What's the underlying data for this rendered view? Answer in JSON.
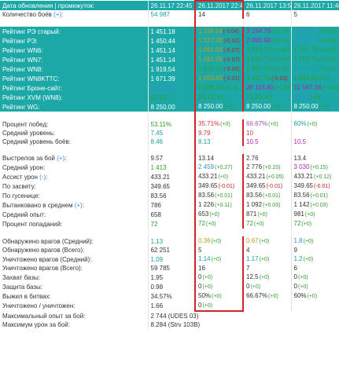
{
  "colors": {
    "green": "#2e9e2e",
    "dark-red": "#c02020",
    "red": "#e0303a",
    "olive": "#8a9a1a",
    "yellow": "#c89a10",
    "blue": "#3d8ad8",
    "magenta": "#b020b0",
    "purple": "#a050c0",
    "teal": "#1aa0a0",
    "default": "#333333",
    "header": "#1da8a8",
    "highlight-border": "#d2232a"
  },
  "rows": [
    {
      "type": "header",
      "label": "Дата обновления | промежуток:",
      "cells": [
        {
          "v": "26.11.17 22:45"
        },
        {
          "v": "26.11.2017 22:45"
        },
        {
          "v": "26.11.2017 13:53"
        },
        {
          "v": "26.11.2017 11:46"
        }
      ]
    },
    {
      "type": "white",
      "label": "Количество боёв (+):",
      "cells": [
        {
          "v": "54 987",
          "c": "teal"
        },
        {
          "v": "14"
        },
        {
          "v": "6"
        },
        {
          "v": "5"
        }
      ]
    },
    {
      "type": "spacer"
    },
    {
      "type": "teal",
      "label": "Рейтинг РЭ старый:",
      "cells": [
        {
          "v": "1 451.18"
        },
        {
          "v": "1 116.14",
          "d": "(-0.08)",
          "c": "yellow",
          "dc": "dark-red"
        },
        {
          "v": "3 154.76",
          "d": "(+0.19)",
          "c": "magenta",
          "dc": "green"
        },
        {
          "v": "1 600.50",
          "d": "(+0.02)",
          "c": "blue",
          "dc": "green"
        }
      ]
    },
    {
      "type": "teal",
      "label": "Рейтинг РЭ:",
      "cells": [
        {
          "v": "1 450.44"
        },
        {
          "v": "1 227.28",
          "d": "(-0.02)",
          "c": "yellow",
          "dc": "dark-red"
        },
        {
          "v": "2 096.98",
          "d": "(+0.14)",
          "c": "magenta",
          "dc": "green"
        },
        {
          "v": "1 655.75",
          "d": "(+0.03)",
          "c": "blue",
          "dc": "green"
        }
      ]
    },
    {
      "type": "teal",
      "label": "Рейтинг WN6:",
      "cells": [
        {
          "v": "1 451.14"
        },
        {
          "v": "1 061.05",
          "d": "(-0.07)",
          "c": "yellow",
          "dc": "dark-red"
        },
        {
          "v": "1 533.73",
          "d": "(+0.04)",
          "c": "green",
          "dc": "green"
        },
        {
          "v": "1 707.75",
          "d": "(+0.05)",
          "c": "green",
          "dc": "green"
        }
      ]
    },
    {
      "type": "teal",
      "label": "Рейтинг WN7:",
      "cells": [
        {
          "v": "1 451.14"
        },
        {
          "v": "1 061.05",
          "d": "(-0.07)",
          "c": "yellow",
          "dc": "dark-red"
        },
        {
          "v": "1 533.73",
          "d": "(+0.04)",
          "c": "green",
          "dc": "green"
        },
        {
          "v": "1 707.75",
          "d": "(+0.05)",
          "c": "green",
          "dc": "green"
        }
      ]
    },
    {
      "type": "teal",
      "label": "Рейтинг WN8:",
      "cells": [
        {
          "v": "1 919.54"
        },
        {
          "v": "1 515.53",
          "d": "(-0.05)",
          "c": "green",
          "dc": "dark-red"
        },
        {
          "v": "2 051.73",
          "d": "(+0.05)",
          "c": "green",
          "dc": "green"
        },
        {
          "v": "2 363.30",
          "d": "(+0.07)",
          "c": "teal",
          "dc": "green"
        }
      ]
    },
    {
      "type": "teal",
      "label": "Рейтинг WN8KTTC:",
      "cells": [
        {
          "v": "1 671.39"
        },
        {
          "v": "1 059.65",
          "d": "(-0.21)",
          "c": "yellow",
          "dc": "dark-red"
        },
        {
          "v": "1 487.41",
          "d": "(-0.03)",
          "c": "green",
          "dc": "dark-red"
        },
        {
          "v": "1 632.05",
          "d": "(+0)",
          "c": "green",
          "dc": "green"
        }
      ]
    },
    {
      "type": "teal",
      "label": "Рейтинг Броне-сайт:",
      "cells": [
        {
          "v": "6 995.25",
          "c": "blue"
        },
        {
          "v": "5 869.33",
          "d": "(+0.5)",
          "c": "green",
          "dc": "green"
        },
        {
          "v": "28 113.80",
          "d": "(+1.58)",
          "c": "magenta",
          "dc": "green"
        },
        {
          "v": "11 587.26",
          "d": "(+0.62)",
          "c": "magenta",
          "dc": "green"
        }
      ]
    },
    {
      "type": "teal",
      "label": "Рейтинг XVM (WN8):",
      "cells": [
        {
          "v": "67.61",
          "c": "green"
        },
        {
          "v": "54.12",
          "d": "(+0)",
          "c": "green",
          "dc": "green"
        },
        {
          "v": "71.80",
          "d": "(+0)",
          "c": "green",
          "dc": "green"
        },
        {
          "v": "80.88",
          "d": "(+0)",
          "c": "blue",
          "dc": "green"
        }
      ]
    },
    {
      "type": "teal",
      "label": "Рейтинг WG:",
      "cells": [
        {
          "v": "8 250.00"
        },
        {
          "v": "8 250.00",
          "d": "(+0)",
          "dc": "green"
        },
        {
          "v": "8 250.00",
          "d": "(+0)",
          "dc": "green"
        },
        {
          "v": "8 250.00",
          "d": "(+1)",
          "dc": "green"
        }
      ]
    },
    {
      "type": "spacer"
    },
    {
      "type": "white",
      "label": "Процент побед:",
      "cells": [
        {
          "v": "53.11%",
          "c": "green"
        },
        {
          "v": "35.71%",
          "d": "(+0)",
          "c": "red",
          "dc": "green"
        },
        {
          "v": "66.67%",
          "d": "(+0)",
          "c": "purple",
          "dc": "green"
        },
        {
          "v": "60%",
          "d": "(+0)",
          "c": "teal",
          "dc": "green"
        }
      ]
    },
    {
      "type": "white",
      "label": "Средний уровень:",
      "cells": [
        {
          "v": "7.45",
          "c": "teal"
        },
        {
          "v": "9.79",
          "c": "red"
        },
        {
          "v": "10",
          "c": "red"
        },
        {
          "v": "",
          "c": "default"
        }
      ]
    },
    {
      "type": "white",
      "label": "Средний уровень боёв:",
      "cells": [
        {
          "v": "8.46",
          "c": "teal"
        },
        {
          "v": "8.13",
          "c": "teal"
        },
        {
          "v": "10.5",
          "c": "magenta"
        },
        {
          "v": "10.5",
          "c": "magenta"
        }
      ]
    },
    {
      "type": "spacer"
    },
    {
      "type": "white",
      "label": "Выстрелов за бой (+):",
      "cells": [
        {
          "v": "9.57"
        },
        {
          "v": "13.14"
        },
        {
          "v": "2.76"
        },
        {
          "v": "13.4"
        }
      ]
    },
    {
      "type": "white",
      "label": "Средний урон:",
      "cells": [
        {
          "v": "1 413",
          "c": "green"
        },
        {
          "v": "2 459",
          "d": "(+0.27)",
          "c": "blue",
          "dc": "green"
        },
        {
          "v": "2 776",
          "d": "(+0.15)",
          "c": "default",
          "dc": "green"
        },
        {
          "v": "3 030",
          "d": "(+0.15)",
          "c": "magenta",
          "dc": "green"
        }
      ]
    },
    {
      "type": "white",
      "label": "Ассист урон (-):",
      "cells": [
        {
          "v": "433.21"
        },
        {
          "v": "433.21",
          "d": "(+0)",
          "dc": "green"
        },
        {
          "v": "433.21",
          "d": "(+0.05)",
          "dc": "green"
        },
        {
          "v": "433.21",
          "d": "(+0.12)",
          "dc": "green"
        }
      ]
    },
    {
      "type": "white",
      "label": "По засвету:",
      "cells": [
        {
          "v": "349.65"
        },
        {
          "v": "349.65",
          "d": "(-0.01)",
          "dc": "dark-red"
        },
        {
          "v": "349.65",
          "d": "(-0.01)",
          "dc": "dark-red"
        },
        {
          "v": "349.65",
          "d": "(-0.01)",
          "dc": "dark-red"
        }
      ]
    },
    {
      "type": "white",
      "label": "По гусенице:",
      "cells": [
        {
          "v": "83.56"
        },
        {
          "v": "83.56",
          "d": "(+0.01)",
          "dc": "green"
        },
        {
          "v": "83.56",
          "d": "(+0.01)",
          "dc": "green"
        },
        {
          "v": "83.56",
          "d": "(+0.01)",
          "dc": "green"
        }
      ]
    },
    {
      "type": "white",
      "label": "Вытанковано в среднем (+):",
      "cells": [
        {
          "v": "786"
        },
        {
          "v": "1 226",
          "d": "(+0.11)",
          "dc": "green"
        },
        {
          "v": "1 092",
          "d": "(+0.03)",
          "dc": "green"
        },
        {
          "v": "1 142",
          "d": "(+0.03)",
          "dc": "green"
        }
      ]
    },
    {
      "type": "white",
      "label": "Средний опыт:",
      "cells": [
        {
          "v": "658"
        },
        {
          "v": "653",
          "d": "(+0)",
          "dc": "green"
        },
        {
          "v": "871",
          "d": "(+0)",
          "dc": "green"
        },
        {
          "v": "981",
          "d": "(+0)",
          "dc": "green"
        }
      ]
    },
    {
      "type": "white",
      "label": "Процент попаданий:",
      "cells": [
        {
          "v": "72",
          "c": "green"
        },
        {
          "v": "72",
          "d": "(+0)",
          "c": "green",
          "dc": "green"
        },
        {
          "v": "72",
          "d": "(+0)",
          "c": "green",
          "dc": "green"
        },
        {
          "v": "72",
          "d": "(+0)",
          "c": "green",
          "dc": "green"
        }
      ]
    },
    {
      "type": "spacer"
    },
    {
      "type": "white",
      "label": "Обнаружено врагов (Средний):",
      "cells": [
        {
          "v": "1.13",
          "c": "teal"
        },
        {
          "v": "0.36",
          "d": "(+0)",
          "c": "yellow",
          "dc": "green"
        },
        {
          "v": "0.67",
          "d": "(+0)",
          "c": "yellow",
          "dc": "green"
        },
        {
          "v": "1.8",
          "d": "(+0)",
          "c": "blue",
          "dc": "green"
        }
      ]
    },
    {
      "type": "white",
      "label": "Обнаружено врагов (Всего):",
      "cells": [
        {
          "v": "62 251"
        },
        {
          "v": "5"
        },
        {
          "v": "4"
        },
        {
          "v": "9"
        }
      ]
    },
    {
      "type": "white",
      "label": "Уничтожено врагов (Средний):",
      "cells": [
        {
          "v": "1.09",
          "c": "teal"
        },
        {
          "v": "1.14",
          "d": "(+0)",
          "c": "teal",
          "dc": "green"
        },
        {
          "v": "1.17",
          "d": "(+0)",
          "c": "teal",
          "dc": "green"
        },
        {
          "v": "1.2",
          "d": "(+0)",
          "c": "teal",
          "dc": "green"
        }
      ]
    },
    {
      "type": "white",
      "label": "Уничтожено врагов (Всего):",
      "cells": [
        {
          "v": "59 785"
        },
        {
          "v": "16"
        },
        {
          "v": "7"
        },
        {
          "v": "6"
        }
      ]
    },
    {
      "type": "white",
      "label": "Захват базы:",
      "cells": [
        {
          "v": "1.95"
        },
        {
          "v": "0",
          "d": "(+0)",
          "dc": "green"
        },
        {
          "v": "12.5",
          "d": "(+0)",
          "dc": "green"
        },
        {
          "v": "0",
          "d": "(+0)",
          "dc": "green"
        }
      ]
    },
    {
      "type": "white",
      "label": "Защита базы:",
      "cells": [
        {
          "v": "0.98"
        },
        {
          "v": "0",
          "d": "(+0)",
          "dc": "green"
        },
        {
          "v": "0",
          "d": "(+0)",
          "dc": "green"
        },
        {
          "v": "0",
          "d": "(+0)",
          "dc": "green"
        }
      ]
    },
    {
      "type": "white",
      "label": "Выжил в битвах:",
      "cells": [
        {
          "v": "34.57%"
        },
        {
          "v": "50%",
          "d": "(+0)",
          "dc": "green"
        },
        {
          "v": "66.67%",
          "d": "(+0)",
          "dc": "green"
        },
        {
          "v": "60%",
          "d": "(+0)",
          "dc": "green"
        }
      ]
    },
    {
      "type": "white",
      "label": "Уничтожено / уничтожен:",
      "cells": [
        {
          "v": "1.66"
        },
        {
          "v": "0",
          "d": "(+0)",
          "dc": "green"
        },
        {
          "v": "",
          "c": "default"
        },
        {
          "v": "",
          "c": "default"
        }
      ]
    },
    {
      "type": "plain",
      "label": "Максимальный опыт за бой:",
      "cells": [
        {
          "v": "2 744 (UDES 03)"
        }
      ]
    },
    {
      "type": "plain",
      "label": "Максимум урон за бой:",
      "cells": [
        {
          "v": "8.284 (Strv 103B)"
        }
      ]
    }
  ]
}
